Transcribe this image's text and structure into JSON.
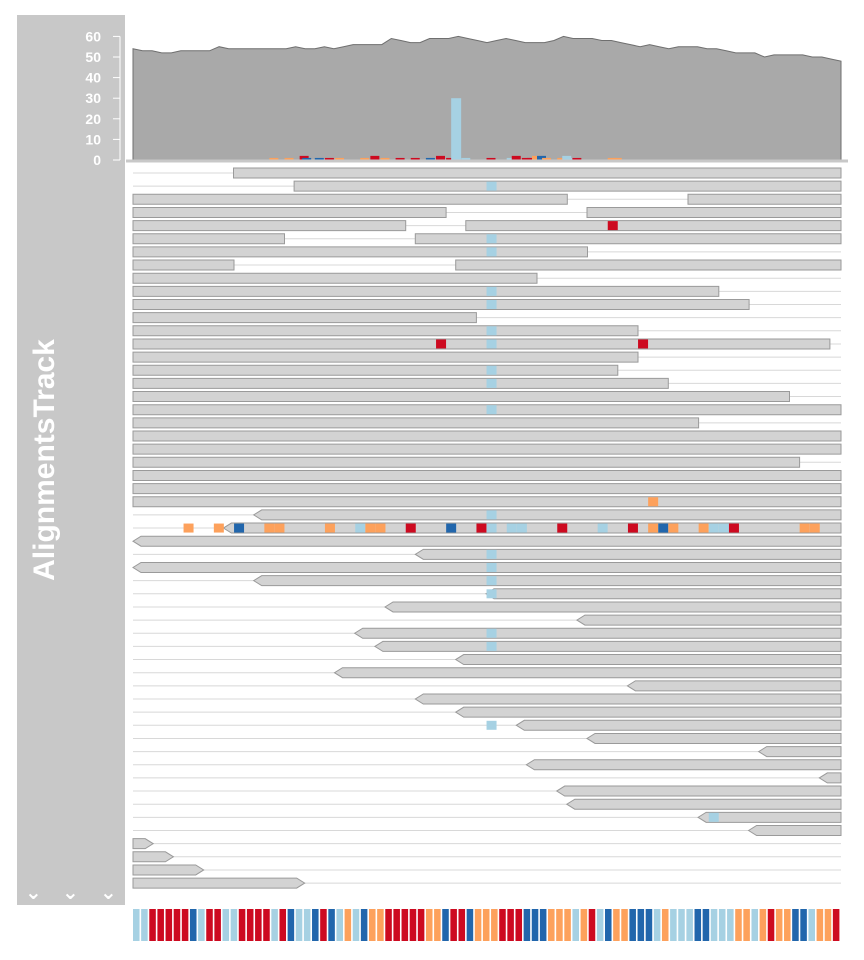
{
  "track": {
    "title": "AlignmentsTrack",
    "expand_glyph": "⌄",
    "expand_icons": [
      "chevron-down-icon",
      "chevron-down-icon",
      "chevron-down-icon"
    ],
    "colors": {
      "panel": "#c8c8c8",
      "coverage": "#a9a9a9",
      "read_fill": "#d3d3d3",
      "read_stroke": "#9a9a9a",
      "read_line": "#d8d8d8",
      "base_A": "#a6d1e3",
      "base_C": "#cd0a20",
      "base_G": "#2166ac",
      "base_T": "#fda15c",
      "axis_text": "#ffffff"
    }
  },
  "chart_data": {
    "type": "area",
    "title": "",
    "xlabel": "",
    "ylabel": "",
    "ylim": [
      0,
      65
    ],
    "y_ticks": [
      0,
      10,
      20,
      30,
      40,
      50,
      60
    ],
    "grid": false,
    "coverage": [
      54,
      53,
      53,
      52,
      52,
      53,
      53,
      53,
      53,
      55,
      54,
      54,
      54,
      54,
      54,
      54,
      54,
      55,
      54,
      54,
      55,
      54,
      55,
      56,
      56,
      56,
      56,
      59,
      58,
      57,
      57,
      59,
      59,
      59,
      60,
      59,
      58,
      57,
      58,
      59,
      58,
      57,
      57,
      57,
      58,
      60,
      59,
      59,
      59,
      58,
      58,
      57,
      56,
      55,
      56,
      55,
      54,
      55,
      55,
      55,
      54,
      54,
      53,
      52,
      52,
      52,
      50,
      51,
      51,
      51,
      51,
      50,
      50,
      49,
      48
    ],
    "mismatch_bars": [
      {
        "pos": 27,
        "base": "T",
        "count": 1
      },
      {
        "pos": 30,
        "base": "T",
        "count": 1
      },
      {
        "pos": 33,
        "base": "C",
        "count": 2
      },
      {
        "pos": 33.5,
        "base": "G",
        "count": 1
      },
      {
        "pos": 36,
        "base": "G",
        "count": 1
      },
      {
        "pos": 38,
        "base": "C",
        "count": 1
      },
      {
        "pos": 40,
        "base": "T",
        "count": 1
      },
      {
        "pos": 45,
        "base": "T",
        "count": 1
      },
      {
        "pos": 47,
        "base": "C",
        "count": 2
      },
      {
        "pos": 49,
        "base": "T",
        "count": 1
      },
      {
        "pos": 52,
        "base": "C",
        "count": 1
      },
      {
        "pos": 55,
        "base": "C",
        "count": 1
      },
      {
        "pos": 58,
        "base": "G",
        "count": 1
      },
      {
        "pos": 60,
        "base": "C",
        "count": 2
      },
      {
        "pos": 62,
        "base": "C",
        "count": 1
      },
      {
        "pos": 63,
        "base": "A",
        "count": 30
      },
      {
        "pos": 65,
        "base": "A",
        "count": 1
      },
      {
        "pos": 70,
        "base": "C",
        "count": 1
      },
      {
        "pos": 74,
        "base": "A",
        "count": 1
      },
      {
        "pos": 75,
        "base": "C",
        "count": 2
      },
      {
        "pos": 77,
        "base": "C",
        "count": 1
      },
      {
        "pos": 78,
        "base": "C",
        "count": 1
      },
      {
        "pos": 79,
        "base": "T",
        "count": 2
      },
      {
        "pos": 80,
        "base": "G",
        "count": 2
      },
      {
        "pos": 81,
        "base": "T",
        "count": 1
      },
      {
        "pos": 84,
        "base": "T",
        "count": 1
      },
      {
        "pos": 85,
        "base": "A",
        "count": 2
      },
      {
        "pos": 86,
        "base": "A",
        "count": 1
      },
      {
        "pos": 87,
        "base": "C",
        "count": 1
      },
      {
        "pos": 94,
        "base": "T",
        "count": 1
      },
      {
        "pos": 95,
        "base": "T",
        "count": 1
      }
    ],
    "reads": [
      {
        "row": 0,
        "start": 5,
        "end": 70,
        "strand": "+",
        "mm": []
      },
      {
        "row": 1,
        "start": 11,
        "end": 70,
        "strand": "+",
        "mm": [
          {
            "pos": 35.5,
            "base": "A"
          }
        ]
      },
      {
        "row": 2,
        "start": 0,
        "end": 43,
        "strand": "+",
        "mm": []
      },
      {
        "row": 2,
        "start": 50,
        "end": 70,
        "strand": "+",
        "mm": []
      },
      {
        "row": 3,
        "start": 0,
        "end": 31,
        "strand": "+",
        "mm": []
      },
      {
        "row": 3,
        "start": 40,
        "end": 70,
        "strand": "+",
        "mm": []
      },
      {
        "row": 4,
        "start": 0,
        "end": 27,
        "strand": "+",
        "mm": []
      },
      {
        "row": 4,
        "start": 28,
        "end": 70,
        "strand": "+",
        "mm": [
          {
            "pos": 47.5,
            "base": "C"
          }
        ]
      },
      {
        "row": 5,
        "start": 0,
        "end": 15,
        "strand": "+",
        "mm": []
      },
      {
        "row": 5,
        "start": 23,
        "end": 70,
        "strand": "+",
        "mm": [
          {
            "pos": 35.5,
            "base": "A"
          }
        ]
      },
      {
        "row": 6,
        "start": 0,
        "end": 45,
        "strand": "+",
        "mm": [
          {
            "pos": 35.5,
            "base": "A"
          }
        ]
      },
      {
        "row": 6,
        "start": 65,
        "end": 70,
        "strand": "+",
        "mm": []
      },
      {
        "row": 7,
        "start": 0,
        "end": 10,
        "strand": "+",
        "mm": []
      },
      {
        "row": 7,
        "start": 27,
        "end": 70,
        "strand": "+",
        "mm": []
      },
      {
        "row": 8,
        "start": 0,
        "end": 40,
        "strand": "+",
        "mm": []
      },
      {
        "row": 8,
        "start": 65,
        "end": 70,
        "strand": "+",
        "mm": []
      },
      {
        "row": 9,
        "start": 0,
        "end": 58,
        "strand": "+",
        "mm": [
          {
            "pos": 35.5,
            "base": "A"
          }
        ]
      },
      {
        "row": 9,
        "start": 66,
        "end": 70,
        "strand": "+",
        "mm": []
      },
      {
        "row": 10,
        "start": 0,
        "end": 61,
        "strand": "+",
        "mm": [
          {
            "pos": 35.5,
            "base": "A"
          }
        ]
      },
      {
        "row": 10,
        "start": 70,
        "end": 70,
        "strand": "+",
        "mm": []
      },
      {
        "row": 11,
        "start": 0,
        "end": 34,
        "strand": "+",
        "mm": []
      },
      {
        "row": 12,
        "start": 0,
        "end": 50,
        "strand": "+",
        "mm": [
          {
            "pos": 35.5,
            "base": "A"
          }
        ]
      },
      {
        "row": 13,
        "start": 0,
        "end": 69,
        "strand": "+",
        "mm": [
          {
            "pos": 30.5,
            "base": "C"
          },
          {
            "pos": 35.5,
            "base": "A"
          },
          {
            "pos": 50.5,
            "base": "C"
          }
        ]
      },
      {
        "row": 14,
        "start": 0,
        "end": 50,
        "strand": "+",
        "mm": []
      },
      {
        "row": 15,
        "start": 0,
        "end": 48,
        "strand": "+",
        "mm": [
          {
            "pos": 35.5,
            "base": "A"
          }
        ]
      },
      {
        "row": 16,
        "start": 0,
        "end": 53,
        "strand": "+",
        "mm": [
          {
            "pos": 35.5,
            "base": "A"
          }
        ]
      },
      {
        "row": 17,
        "start": 0,
        "end": 65,
        "strand": "+",
        "mm": []
      },
      {
        "row": 18,
        "start": 0,
        "end": 70,
        "strand": "+",
        "mm": [
          {
            "pos": 35.5,
            "base": "A"
          }
        ]
      },
      {
        "row": 19,
        "start": 0,
        "end": 56,
        "strand": "+",
        "mm": []
      },
      {
        "row": 20,
        "start": 0,
        "end": 70,
        "strand": "+",
        "mm": []
      },
      {
        "row": 21,
        "start": 0,
        "end": 70,
        "strand": "+",
        "mm": []
      },
      {
        "row": 22,
        "start": 0,
        "end": 66,
        "strand": "+",
        "mm": []
      },
      {
        "row": 23,
        "start": 0,
        "end": 70,
        "strand": "+",
        "mm": []
      },
      {
        "row": 24,
        "start": 0,
        "end": 70,
        "strand": "+",
        "mm": []
      },
      {
        "row": 25,
        "start": 0,
        "end": 70,
        "strand": "+",
        "mm": [
          {
            "pos": 51.5,
            "base": "T"
          }
        ]
      },
      {
        "row": 26,
        "start": 7,
        "end": 70,
        "strand": "-",
        "mm": [
          {
            "pos": 35.5,
            "base": "A"
          }
        ]
      },
      {
        "row": 27,
        "start": 4,
        "end": 70,
        "strand": "-",
        "mm": [
          {
            "pos": 5.5,
            "base": "T"
          },
          {
            "pos": 8.5,
            "base": "T"
          },
          {
            "pos": 10.5,
            "base": "G"
          },
          {
            "pos": 13.5,
            "base": "T"
          },
          {
            "pos": 14.5,
            "base": "T"
          },
          {
            "pos": 19.5,
            "base": "T"
          },
          {
            "pos": 22.5,
            "base": "A"
          },
          {
            "pos": 23.5,
            "base": "T"
          },
          {
            "pos": 24.5,
            "base": "T"
          },
          {
            "pos": 27.5,
            "base": "C"
          },
          {
            "pos": 31.5,
            "base": "G"
          },
          {
            "pos": 34.5,
            "base": "C"
          },
          {
            "pos": 35.5,
            "base": "A"
          },
          {
            "pos": 37.5,
            "base": "A"
          },
          {
            "pos": 38.5,
            "base": "A"
          },
          {
            "pos": 42.5,
            "base": "C"
          },
          {
            "pos": 46.5,
            "base": "A"
          },
          {
            "pos": 49.5,
            "base": "C"
          },
          {
            "pos": 51.5,
            "base": "T"
          },
          {
            "pos": 52.5,
            "base": "G"
          },
          {
            "pos": 53.5,
            "base": "T"
          },
          {
            "pos": 56.5,
            "base": "T"
          },
          {
            "pos": 57.5,
            "base": "A"
          },
          {
            "pos": 58.5,
            "base": "A"
          },
          {
            "pos": 59.5,
            "base": "C"
          },
          {
            "pos": 66.5,
            "base": "T"
          },
          {
            "pos": 67.5,
            "base": "T"
          }
        ]
      },
      {
        "row": 28,
        "start": 0,
        "end": 70,
        "strand": "-",
        "mm": []
      },
      {
        "row": 29,
        "start": 23,
        "end": 70,
        "strand": "-",
        "mm": [
          {
            "pos": 35.5,
            "base": "A"
          }
        ]
      },
      {
        "row": 30,
        "start": 0,
        "end": 70,
        "strand": "-",
        "mm": [
          {
            "pos": 35.5,
            "base": "A"
          }
        ]
      },
      {
        "row": 31,
        "start": 7,
        "end": 70,
        "strand": "-",
        "mm": [
          {
            "pos": 35.5,
            "base": "A"
          }
        ]
      },
      {
        "row": 32,
        "start": 30,
        "end": 70,
        "strand": "-",
        "mm": [
          {
            "pos": 35.5,
            "base": "A"
          }
        ]
      },
      {
        "row": 33,
        "start": 20,
        "end": 70,
        "strand": "-",
        "mm": []
      },
      {
        "row": 34,
        "start": 39,
        "end": 70,
        "strand": "-",
        "mm": []
      },
      {
        "row": 35,
        "start": 17,
        "end": 70,
        "strand": "-",
        "mm": [
          {
            "pos": 35.5,
            "base": "A"
          }
        ]
      },
      {
        "row": 36,
        "start": 19,
        "end": 70,
        "strand": "-",
        "mm": [
          {
            "pos": 35.5,
            "base": "A"
          }
        ]
      },
      {
        "row": 37,
        "start": 27,
        "end": 70,
        "strand": "-",
        "mm": []
      },
      {
        "row": 38,
        "start": 15,
        "end": 70,
        "strand": "-",
        "mm": []
      },
      {
        "row": 39,
        "start": 44,
        "end": 70,
        "strand": "-",
        "mm": []
      },
      {
        "row": 40,
        "start": 23,
        "end": 70,
        "strand": "-",
        "mm": []
      },
      {
        "row": 41,
        "start": 27,
        "end": 70,
        "strand": "-",
        "mm": []
      },
      {
        "row": 42,
        "start": 33,
        "end": 70,
        "strand": "-",
        "mm": [
          {
            "pos": 35.5,
            "base": "A"
          }
        ]
      },
      {
        "row": 43,
        "start": 40,
        "end": 70,
        "strand": "-",
        "mm": []
      },
      {
        "row": 44,
        "start": 57,
        "end": 70,
        "strand": "-",
        "mm": []
      },
      {
        "row": 45,
        "start": 34,
        "end": 70,
        "strand": "-",
        "mm": []
      },
      {
        "row": 46,
        "start": 63,
        "end": 70,
        "strand": "-",
        "mm": []
      },
      {
        "row": 47,
        "start": 37,
        "end": 70,
        "strand": "-",
        "mm": []
      },
      {
        "row": 48,
        "start": 38,
        "end": 70,
        "strand": "-",
        "mm": []
      },
      {
        "row": 49,
        "start": 51,
        "end": 70,
        "strand": "-",
        "mm": [
          {
            "pos": 57.5,
            "base": "A"
          }
        ]
      },
      {
        "row": 50,
        "start": 56,
        "end": 70,
        "strand": "-",
        "mm": []
      },
      {
        "row": 51,
        "start": 0,
        "end": 2,
        "strand": "+",
        "mm": []
      },
      {
        "row": 52,
        "start": 0,
        "end": 4,
        "strand": "+",
        "mm": []
      },
      {
        "row": 53,
        "start": 0,
        "end": 7,
        "strand": "+",
        "mm": []
      },
      {
        "row": 54,
        "start": 0,
        "end": 17,
        "strand": "+",
        "mm": []
      }
    ],
    "sequence": [
      "A",
      "A",
      "C",
      "C",
      "C",
      "C",
      "C",
      "G",
      "A",
      "C",
      "C",
      "A",
      "A",
      "C",
      "C",
      "C",
      "C",
      "A",
      "C",
      "G",
      "A",
      "A",
      "G",
      "C",
      "G",
      "A",
      "T",
      "A",
      "G",
      "T",
      "T",
      "C",
      "C",
      "C",
      "C",
      "C",
      "T",
      "T",
      "G",
      "C",
      "C",
      "G",
      "T",
      "T",
      "T",
      "C",
      "C",
      "C",
      "G",
      "G",
      "G",
      "T",
      "T",
      "T",
      "A",
      "T",
      "C",
      "A",
      "G",
      "T",
      "T",
      "G",
      "G",
      "G",
      "A",
      "T",
      "A",
      "A",
      "A",
      "G",
      "G",
      "A",
      "A",
      "A",
      "T",
      "T",
      "A",
      "T",
      "C",
      "T",
      "T",
      "G",
      "G",
      "A",
      "T",
      "T",
      "C"
    ]
  }
}
